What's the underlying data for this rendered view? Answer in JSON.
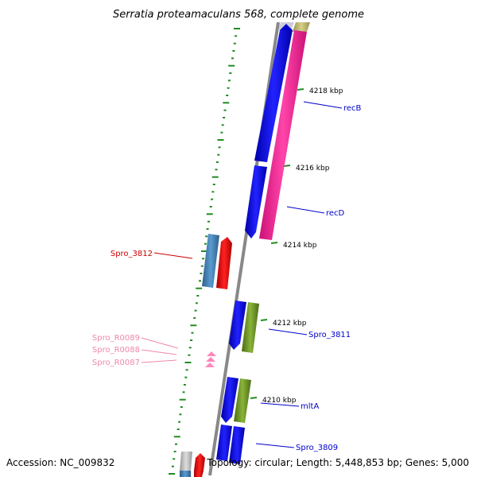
{
  "title": "Serratia proteamaculans 568, complete genome",
  "footer": {
    "accession": "Accession: NC_009832",
    "topology": "Topology: circular; Length: 5,448,853 bp; Genes: 5,000"
  },
  "ticks": [
    "4218 kbp",
    "4216 kbp",
    "4214 kbp",
    "4212 kbp",
    "4210 kbp"
  ],
  "labels": {
    "recB": "recB",
    "recD": "recD",
    "spro_3812": "Spro_3812",
    "spro_3811": "Spro_3811",
    "mltA": "mltA",
    "spro_3809": "Spro_3809",
    "spro_r0089": "Spro_R0089",
    "spro_r0088": "Spro_R0088",
    "spro_r0087": "Spro_R0087"
  },
  "colors": {
    "cds_forward": "#0000ee",
    "cds_reverse": "#ff3399",
    "gene_red": "#ff0000",
    "gene_steelblue": "#4682b4",
    "gene_olive": "#6b8e23",
    "gene_khaki": "#bdb76b",
    "gene_grey": "#c0c0c0",
    "trna": "#ff88bb",
    "tick_green": "#228b22",
    "backbone": "#888888",
    "label_blue": "#0000cc",
    "label_red": "#cc0000",
    "label_pink": "#ee88aa"
  }
}
